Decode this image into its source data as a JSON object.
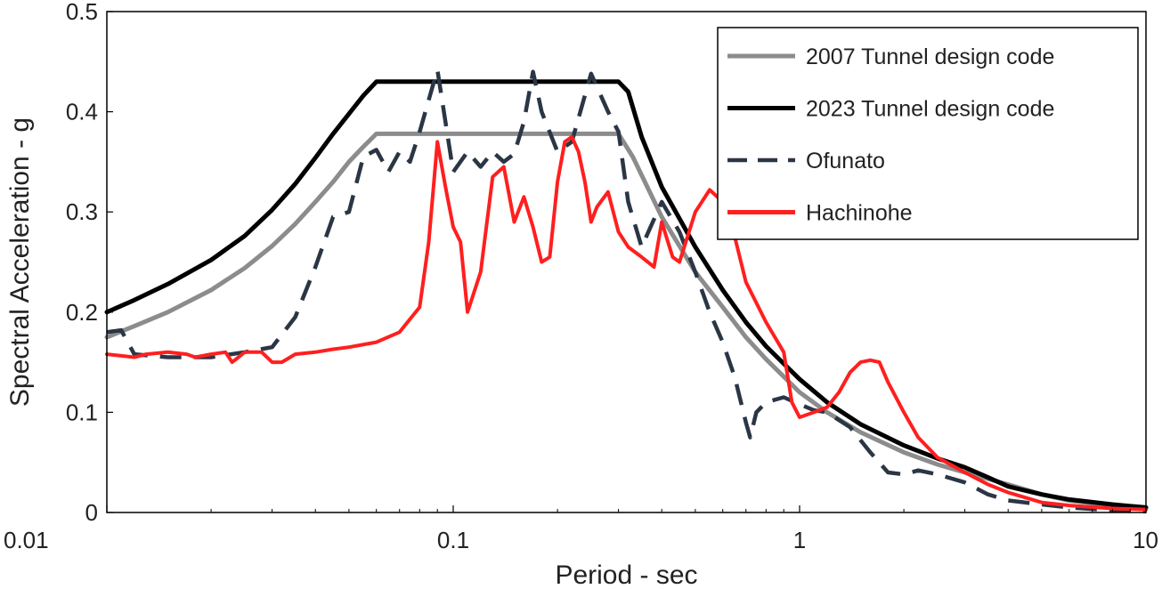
{
  "chart_data": {
    "type": "line",
    "xlabel": "Period - sec",
    "ylabel": "Spectral Acceleration - g",
    "xscale": "log",
    "xlim": [
      0.01,
      10
    ],
    "ylim": [
      0,
      0.5
    ],
    "xticks": [
      "0.01",
      "0.1",
      "1",
      "10"
    ],
    "xtick_values": [
      0.01,
      0.1,
      1,
      10
    ],
    "yticks": [
      "0",
      "0.1",
      "0.2",
      "0.3",
      "0.4",
      "0.5"
    ],
    "ytick_values": [
      0,
      0.1,
      0.2,
      0.3,
      0.4,
      0.5
    ],
    "grid": false,
    "legend_position": "top-right",
    "series": [
      {
        "name": "2007 Tunnel design code",
        "color": "#8c8c8c",
        "style": "solid",
        "points": [
          [
            0.01,
            0.175
          ],
          [
            0.012,
            0.186
          ],
          [
            0.015,
            0.2
          ],
          [
            0.02,
            0.222
          ],
          [
            0.025,
            0.244
          ],
          [
            0.03,
            0.266
          ],
          [
            0.035,
            0.288
          ],
          [
            0.04,
            0.31
          ],
          [
            0.045,
            0.33
          ],
          [
            0.05,
            0.35
          ],
          [
            0.055,
            0.365
          ],
          [
            0.06,
            0.378
          ],
          [
            0.1,
            0.378
          ],
          [
            0.2,
            0.378
          ],
          [
            0.3,
            0.378
          ],
          [
            0.33,
            0.355
          ],
          [
            0.4,
            0.295
          ],
          [
            0.5,
            0.24
          ],
          [
            0.6,
            0.205
          ],
          [
            0.7,
            0.175
          ],
          [
            0.8,
            0.153
          ],
          [
            1.0,
            0.12
          ],
          [
            1.2,
            0.1
          ],
          [
            1.5,
            0.08
          ],
          [
            2.0,
            0.06
          ],
          [
            2.5,
            0.048
          ],
          [
            3.0,
            0.04
          ],
          [
            4.0,
            0.028
          ],
          [
            5.0,
            0.018
          ],
          [
            6.0,
            0.012
          ],
          [
            8.0,
            0.007
          ],
          [
            10.0,
            0.004
          ]
        ]
      },
      {
        "name": "2023 Tunnel design code",
        "color": "#000000",
        "style": "solid",
        "points": [
          [
            0.01,
            0.2
          ],
          [
            0.012,
            0.212
          ],
          [
            0.015,
            0.228
          ],
          [
            0.02,
            0.252
          ],
          [
            0.025,
            0.276
          ],
          [
            0.03,
            0.302
          ],
          [
            0.035,
            0.328
          ],
          [
            0.04,
            0.354
          ],
          [
            0.045,
            0.378
          ],
          [
            0.05,
            0.398
          ],
          [
            0.055,
            0.416
          ],
          [
            0.06,
            0.43
          ],
          [
            0.1,
            0.43
          ],
          [
            0.2,
            0.43
          ],
          [
            0.3,
            0.43
          ],
          [
            0.32,
            0.42
          ],
          [
            0.35,
            0.375
          ],
          [
            0.4,
            0.325
          ],
          [
            0.5,
            0.265
          ],
          [
            0.6,
            0.222
          ],
          [
            0.7,
            0.19
          ],
          [
            0.8,
            0.166
          ],
          [
            1.0,
            0.133
          ],
          [
            1.2,
            0.11
          ],
          [
            1.5,
            0.088
          ],
          [
            2.0,
            0.067
          ],
          [
            2.5,
            0.054
          ],
          [
            3.0,
            0.045
          ],
          [
            3.5,
            0.035
          ],
          [
            4.0,
            0.026
          ],
          [
            5.0,
            0.018
          ],
          [
            6.0,
            0.013
          ],
          [
            8.0,
            0.008
          ],
          [
            10.0,
            0.005
          ]
        ]
      },
      {
        "name": "Ofunato",
        "color": "#2b3645",
        "style": "dashed",
        "points": [
          [
            0.01,
            0.18
          ],
          [
            0.011,
            0.182
          ],
          [
            0.012,
            0.158
          ],
          [
            0.015,
            0.155
          ],
          [
            0.02,
            0.155
          ],
          [
            0.025,
            0.16
          ],
          [
            0.03,
            0.165
          ],
          [
            0.035,
            0.195
          ],
          [
            0.04,
            0.245
          ],
          [
            0.045,
            0.295
          ],
          [
            0.05,
            0.3
          ],
          [
            0.055,
            0.355
          ],
          [
            0.06,
            0.362
          ],
          [
            0.065,
            0.34
          ],
          [
            0.07,
            0.36
          ],
          [
            0.075,
            0.35
          ],
          [
            0.08,
            0.38
          ],
          [
            0.09,
            0.442
          ],
          [
            0.1,
            0.34
          ],
          [
            0.11,
            0.36
          ],
          [
            0.12,
            0.345
          ],
          [
            0.13,
            0.36
          ],
          [
            0.14,
            0.35
          ],
          [
            0.15,
            0.358
          ],
          [
            0.16,
            0.39
          ],
          [
            0.17,
            0.44
          ],
          [
            0.18,
            0.4
          ],
          [
            0.2,
            0.36
          ],
          [
            0.22,
            0.37
          ],
          [
            0.25,
            0.438
          ],
          [
            0.28,
            0.4
          ],
          [
            0.3,
            0.38
          ],
          [
            0.32,
            0.31
          ],
          [
            0.35,
            0.265
          ],
          [
            0.4,
            0.31
          ],
          [
            0.45,
            0.28
          ],
          [
            0.5,
            0.24
          ],
          [
            0.55,
            0.2
          ],
          [
            0.6,
            0.17
          ],
          [
            0.65,
            0.135
          ],
          [
            0.7,
            0.09
          ],
          [
            0.72,
            0.075
          ],
          [
            0.75,
            0.1
          ],
          [
            0.8,
            0.11
          ],
          [
            0.9,
            0.115
          ],
          [
            1.0,
            0.108
          ],
          [
            1.1,
            0.102
          ],
          [
            1.2,
            0.1
          ],
          [
            1.4,
            0.085
          ],
          [
            1.6,
            0.06
          ],
          [
            1.8,
            0.04
          ],
          [
            2.0,
            0.038
          ],
          [
            2.2,
            0.042
          ],
          [
            2.5,
            0.038
          ],
          [
            3.0,
            0.03
          ],
          [
            3.5,
            0.018
          ],
          [
            4.0,
            0.012
          ],
          [
            5.0,
            0.008
          ],
          [
            6.0,
            0.005
          ],
          [
            8.0,
            0.002
          ],
          [
            10.0,
            0.001
          ]
        ]
      },
      {
        "name": "Hachinohe",
        "color": "#ff1f1f",
        "style": "solid",
        "points": [
          [
            0.01,
            0.158
          ],
          [
            0.012,
            0.155
          ],
          [
            0.013,
            0.158
          ],
          [
            0.015,
            0.16
          ],
          [
            0.017,
            0.158
          ],
          [
            0.018,
            0.155
          ],
          [
            0.02,
            0.158
          ],
          [
            0.022,
            0.16
          ],
          [
            0.023,
            0.15
          ],
          [
            0.024,
            0.155
          ],
          [
            0.025,
            0.16
          ],
          [
            0.028,
            0.16
          ],
          [
            0.03,
            0.15
          ],
          [
            0.032,
            0.15
          ],
          [
            0.035,
            0.158
          ],
          [
            0.04,
            0.16
          ],
          [
            0.045,
            0.163
          ],
          [
            0.05,
            0.165
          ],
          [
            0.06,
            0.17
          ],
          [
            0.07,
            0.18
          ],
          [
            0.08,
            0.205
          ],
          [
            0.085,
            0.27
          ],
          [
            0.09,
            0.37
          ],
          [
            0.095,
            0.325
          ],
          [
            0.1,
            0.285
          ],
          [
            0.105,
            0.27
          ],
          [
            0.11,
            0.2
          ],
          [
            0.12,
            0.24
          ],
          [
            0.13,
            0.335
          ],
          [
            0.14,
            0.345
          ],
          [
            0.15,
            0.29
          ],
          [
            0.16,
            0.315
          ],
          [
            0.17,
            0.285
          ],
          [
            0.18,
            0.25
          ],
          [
            0.19,
            0.255
          ],
          [
            0.2,
            0.33
          ],
          [
            0.21,
            0.37
          ],
          [
            0.22,
            0.375
          ],
          [
            0.23,
            0.36
          ],
          [
            0.24,
            0.33
          ],
          [
            0.25,
            0.29
          ],
          [
            0.26,
            0.305
          ],
          [
            0.28,
            0.32
          ],
          [
            0.3,
            0.28
          ],
          [
            0.32,
            0.265
          ],
          [
            0.35,
            0.255
          ],
          [
            0.38,
            0.245
          ],
          [
            0.4,
            0.29
          ],
          [
            0.43,
            0.255
          ],
          [
            0.45,
            0.25
          ],
          [
            0.5,
            0.3
          ],
          [
            0.55,
            0.322
          ],
          [
            0.6,
            0.31
          ],
          [
            0.65,
            0.275
          ],
          [
            0.7,
            0.23
          ],
          [
            0.8,
            0.19
          ],
          [
            0.9,
            0.16
          ],
          [
            0.95,
            0.11
          ],
          [
            1.0,
            0.095
          ],
          [
            1.1,
            0.1
          ],
          [
            1.2,
            0.105
          ],
          [
            1.3,
            0.12
          ],
          [
            1.4,
            0.14
          ],
          [
            1.5,
            0.15
          ],
          [
            1.6,
            0.152
          ],
          [
            1.7,
            0.15
          ],
          [
            1.8,
            0.13
          ],
          [
            2.0,
            0.1
          ],
          [
            2.2,
            0.075
          ],
          [
            2.5,
            0.055
          ],
          [
            3.0,
            0.04
          ],
          [
            3.5,
            0.028
          ],
          [
            4.0,
            0.02
          ],
          [
            5.0,
            0.01
          ],
          [
            6.0,
            0.007
          ],
          [
            8.0,
            0.004
          ],
          [
            10.0,
            0.003
          ]
        ]
      }
    ]
  }
}
